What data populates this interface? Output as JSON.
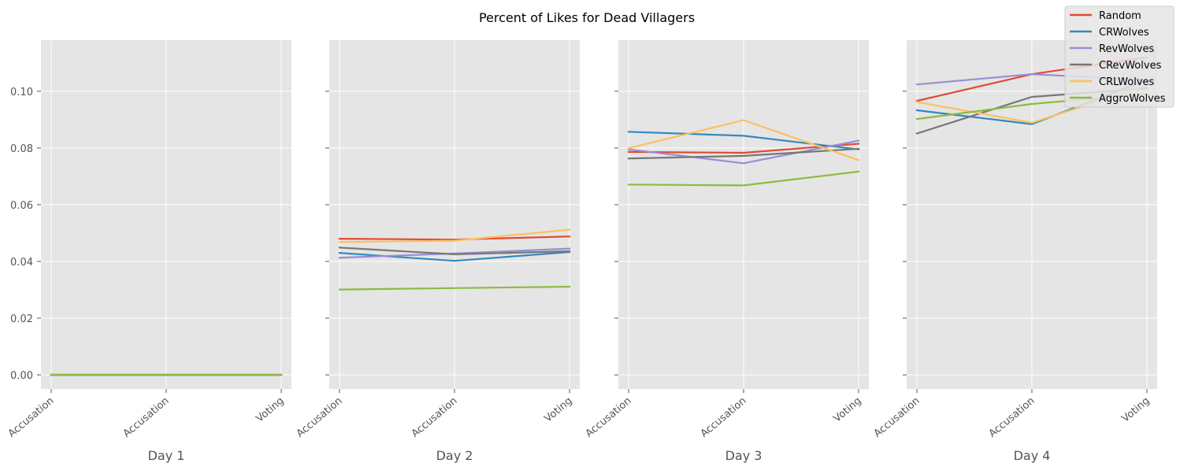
{
  "chart_data": {
    "type": "line",
    "title": "Percent of Likes for Dead Villagers",
    "categories": [
      "Accusation",
      "Accusation",
      "Voting"
    ],
    "ylim": [
      -0.005,
      0.118
    ],
    "yticks": [
      "0.00",
      "0.02",
      "0.04",
      "0.06",
      "0.08",
      "0.10"
    ],
    "ytick_values": [
      0.0,
      0.02,
      0.04,
      0.06,
      0.08,
      0.1
    ],
    "grid": true,
    "legend_position": "top-right",
    "series_colors": {
      "Random": "#e24a33",
      "CRWolves": "#348abd",
      "RevWolves": "#988ed5",
      "CRevWolves": "#777777",
      "CRLWolves": "#fbc15e",
      "AggroWolves": "#8eba42"
    },
    "legend": [
      "Random",
      "CRWolves",
      "RevWolves",
      "CRevWolves",
      "CRLWolves",
      "AggroWolves"
    ],
    "panels": [
      {
        "xlabel": "Day 1",
        "series": [
          {
            "name": "Random",
            "values": [
              0.0,
              0.0,
              0.0
            ]
          },
          {
            "name": "CRWolves",
            "values": [
              0.0,
              0.0,
              0.0
            ]
          },
          {
            "name": "RevWolves",
            "values": [
              0.0,
              0.0,
              0.0
            ]
          },
          {
            "name": "CRevWolves",
            "values": [
              0.0,
              0.0,
              0.0
            ]
          },
          {
            "name": "CRLWolves",
            "values": [
              0.0,
              0.0,
              0.0
            ]
          },
          {
            "name": "AggroWolves",
            "values": [
              0.0,
              0.0,
              0.0
            ]
          }
        ]
      },
      {
        "xlabel": "Day 2",
        "series": [
          {
            "name": "Random",
            "values": [
              0.048,
              0.0477,
              0.0488
            ]
          },
          {
            "name": "CRWolves",
            "values": [
              0.043,
              0.0402,
              0.0433
            ]
          },
          {
            "name": "RevWolves",
            "values": [
              0.0413,
              0.0428,
              0.0445
            ]
          },
          {
            "name": "CRevWolves",
            "values": [
              0.0449,
              0.0425,
              0.0436
            ]
          },
          {
            "name": "CRLWolves",
            "values": [
              0.0468,
              0.0473,
              0.0512
            ]
          },
          {
            "name": "AggroWolves",
            "values": [
              0.0301,
              0.0306,
              0.0311
            ]
          }
        ]
      },
      {
        "xlabel": "Day 3",
        "series": [
          {
            "name": "Random",
            "values": [
              0.0786,
              0.0783,
              0.0815
            ]
          },
          {
            "name": "CRWolves",
            "values": [
              0.0857,
              0.0843,
              0.0795
            ]
          },
          {
            "name": "RevWolves",
            "values": [
              0.0795,
              0.0746,
              0.0826
            ]
          },
          {
            "name": "CRevWolves",
            "values": [
              0.0763,
              0.0772,
              0.0797
            ]
          },
          {
            "name": "CRLWolves",
            "values": [
              0.0799,
              0.0898,
              0.0757
            ]
          },
          {
            "name": "AggroWolves",
            "values": [
              0.0671,
              0.0668,
              0.0717
            ]
          }
        ]
      },
      {
        "xlabel": "Day 4",
        "series": [
          {
            "name": "Random",
            "values": [
              0.0966,
              0.106,
              0.112
            ]
          },
          {
            "name": "CRWolves",
            "values": [
              0.0933,
              0.0884,
              0.104
            ]
          },
          {
            "name": "RevWolves",
            "values": [
              0.1024,
              0.106,
              0.104
            ]
          },
          {
            "name": "CRevWolves",
            "values": [
              0.0851,
              0.098,
              0.101
            ]
          },
          {
            "name": "CRLWolves",
            "values": [
              0.0962,
              0.0889,
              0.102
            ]
          },
          {
            "name": "AggroWolves",
            "values": [
              0.0902,
              0.0955,
              0.099
            ]
          }
        ]
      }
    ]
  }
}
